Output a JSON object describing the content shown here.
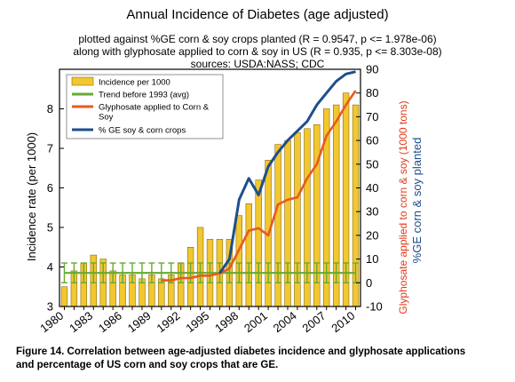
{
  "chart_data": {
    "type": "bar",
    "title": "Annual Incidence of Diabetes (age adjusted)",
    "subtitle_lines": [
      "plotted against %GE corn & soy crops planted (R = 0.9547, p <= 1.978e-06)",
      "along with glyphosate applied to corn & soy in US (R = 0.935, p <= 8.303e-08)",
      "sources: USDA:NASS; CDC"
    ],
    "xlabel": "",
    "ylabel_left": "Incidence rate (per 1000)",
    "ylabel_right_1": "Glyphosate applied to corn & soy (1000 tons)",
    "ylabel_right_2": "%GE corn & soy planted",
    "ylim_left": [
      3,
      9
    ],
    "ylim_right": [
      -10,
      90
    ],
    "left_ticks": [
      "3",
      "4",
      "5",
      "6",
      "7",
      "8"
    ],
    "right_ticks": [
      "-10",
      "0",
      "10",
      "20",
      "30",
      "40",
      "50",
      "60",
      "70",
      "80",
      "90"
    ],
    "x_tick_labels": [
      "1980",
      "1983",
      "1986",
      "1989",
      "1992",
      "1995",
      "1998",
      "2001",
      "2004",
      "2007",
      "2010"
    ],
    "years": [
      1980,
      1981,
      1982,
      1983,
      1984,
      1985,
      1986,
      1987,
      1988,
      1989,
      1990,
      1991,
      1992,
      1993,
      1994,
      1995,
      1996,
      1997,
      1998,
      1999,
      2000,
      2001,
      2002,
      2003,
      2004,
      2005,
      2006,
      2007,
      2008,
      2009,
      2010
    ],
    "series": [
      {
        "name": "Incidence per 1000",
        "axis": "left",
        "color": "#f2c72f",
        "values": [
          3.5,
          3.9,
          4.1,
          4.3,
          4.2,
          3.9,
          3.8,
          3.8,
          3.7,
          3.8,
          3.7,
          3.8,
          4.1,
          4.5,
          5.0,
          4.7,
          4.7,
          4.7,
          5.3,
          5.6,
          6.2,
          6.7,
          7.1,
          7.2,
          7.4,
          7.5,
          7.6,
          8.0,
          8.1,
          8.4,
          8.1
        ]
      },
      {
        "name": "Trend before 1993 (avg)",
        "axis": "left",
        "color": "#66aa33",
        "values": [
          3.85,
          3.85,
          3.85,
          3.85,
          3.85,
          3.85,
          3.85,
          3.85,
          3.85,
          3.85,
          3.85,
          3.85,
          3.85,
          3.85,
          3.85,
          3.85,
          3.85,
          3.85,
          3.85,
          3.85,
          3.85,
          3.85,
          3.85,
          3.85,
          3.85,
          3.85,
          3.85,
          3.85,
          3.85,
          3.85,
          3.85
        ],
        "error": 0.25
      },
      {
        "name": "Glyphosate applied to Corn & Soy",
        "axis": "right",
        "color": "#e85a1e",
        "x": [
          1990,
          1991,
          1992,
          1993,
          1994,
          1995,
          1996,
          1997,
          1998,
          1999,
          2000,
          2001,
          2002,
          2003,
          2004,
          2005,
          2006,
          2007,
          2008,
          2009,
          2010
        ],
        "values": [
          1,
          1,
          2,
          2,
          3,
          3,
          4,
          6,
          14,
          22,
          23,
          20,
          33,
          35,
          36,
          44,
          50,
          62,
          68,
          75,
          81
        ]
      },
      {
        "name": "% GE soy & corn crops",
        "axis": "right",
        "color": "#1f4e8c",
        "x": [
          1996,
          1997,
          1998,
          1999,
          2000,
          2001,
          2002,
          2003,
          2004,
          2005,
          2006,
          2007,
          2008,
          2009,
          2010
        ],
        "values": [
          4,
          10,
          35,
          44,
          37,
          49,
          55,
          60,
          64,
          68,
          75,
          80,
          85,
          88,
          89
        ]
      }
    ],
    "legend_position": "top-left",
    "grid": false
  },
  "caption": {
    "line1": "Figure 14. Correlation between age-adjusted diabetes incidence and glyphosate applications",
    "line2": "and percentage of US corn and soy crops that are GE."
  }
}
